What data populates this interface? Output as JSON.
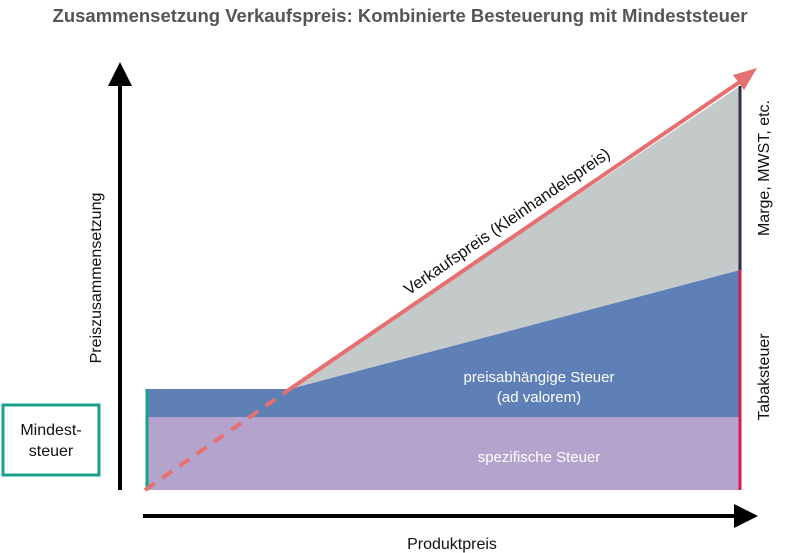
{
  "title": "Zusammensetzung Verkaufspreis: Kombinierte Besteuerung mit Mindeststeuer",
  "axes": {
    "y_label": "Preiszusammensetzung",
    "x_label": "Produktpreis"
  },
  "bands": {
    "specific_tax": "spezifische Steuer",
    "ad_valorem_line1": "preisabhängige Steuer",
    "ad_valorem_line2": "(ad valorem)"
  },
  "price_line": {
    "label": "Verkaufspreis (Kleinhandelspreis)"
  },
  "side_labels": {
    "margin": "Marge, MWST, etc.",
    "tobacco_tax": "Tabaksteuer"
  },
  "minimum_tax_box": {
    "line1": "Mindest-",
    "line2": "steuer"
  },
  "colors": {
    "specific_tax": "#b4a3cd",
    "ad_valorem": "#5e80b6",
    "margin": "#c4c9c9",
    "price_line": "#e6706f",
    "minimum_tax": "#1aa08a",
    "tobacco_tax_bar": "#d21d4e",
    "margin_bar": "#2e3340",
    "axis": "#000000"
  }
}
